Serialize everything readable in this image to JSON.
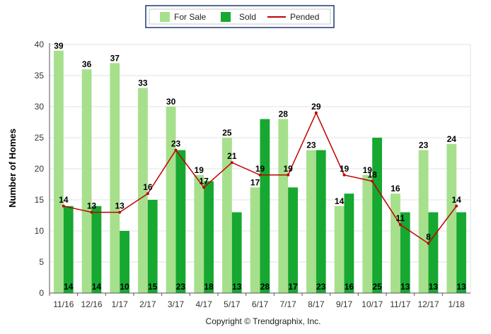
{
  "chart_data": {
    "type": "bar",
    "categories": [
      "11/16",
      "12/16",
      "1/17",
      "2/17",
      "3/17",
      "4/17",
      "5/17",
      "6/17",
      "7/17",
      "8/17",
      "9/17",
      "10/17",
      "11/17",
      "12/17",
      "1/18"
    ],
    "series": [
      {
        "name": "For Sale",
        "type": "bar",
        "color": "#a6e08c",
        "values": [
          39,
          36,
          37,
          33,
          30,
          19,
          25,
          17,
          28,
          23,
          14,
          19,
          16,
          23,
          24
        ]
      },
      {
        "name": "Sold",
        "type": "bar",
        "color": "#16a831",
        "values": [
          14,
          14,
          10,
          15,
          23,
          18,
          13,
          28,
          17,
          23,
          16,
          25,
          13,
          13,
          13
        ]
      },
      {
        "name": "Pended",
        "type": "line",
        "color": "#c00000",
        "values": [
          14,
          13,
          13,
          16,
          23,
          17,
          21,
          19,
          19,
          29,
          19,
          18,
          11,
          8,
          14
        ]
      }
    ],
    "title": "",
    "xlabel": "",
    "ylabel": "Number of Homes",
    "ylim": [
      0,
      40
    ],
    "yticks": [
      0,
      5,
      10,
      15,
      20,
      25,
      30,
      35,
      40
    ],
    "grid": true,
    "legend_position": "top-center"
  },
  "footer": {
    "copyright": "Copyright © Trendgraphix, Inc."
  }
}
